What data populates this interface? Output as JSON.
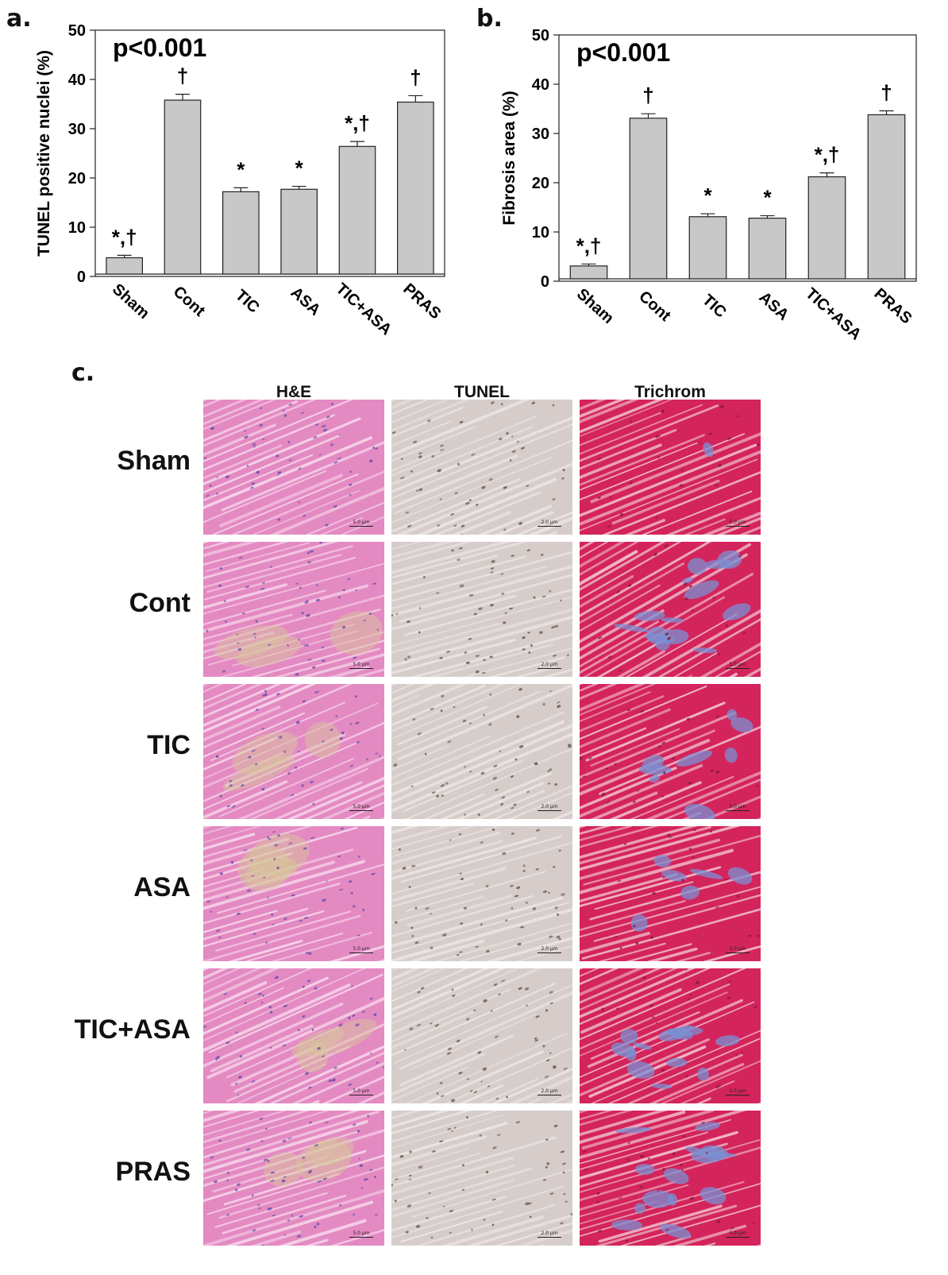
{
  "panel_labels": {
    "a": "a.",
    "b": "b.",
    "c": "c."
  },
  "chart_data": [
    {
      "type": "bar",
      "ylabel": "TUNEL positive nuclei (%)",
      "categories": [
        "Sham",
        "Cont",
        "TIC",
        "ASA",
        "TIC+ASA",
        "PRAS"
      ],
      "values": [
        3.8,
        35.8,
        17.2,
        17.7,
        26.4,
        35.4
      ],
      "errors": [
        0.5,
        1.2,
        0.8,
        0.6,
        1.0,
        1.3
      ],
      "annotations": [
        "*,†",
        "†",
        "*",
        "*",
        "*,†",
        "†"
      ],
      "pvalue": "p<0.001",
      "yticks": [
        0,
        10,
        20,
        30,
        40,
        50
      ],
      "ylim": [
        0,
        50
      ],
      "bar_color": "#c8c8c8"
    },
    {
      "type": "bar",
      "ylabel": "Fibrosis area (%)",
      "categories": [
        "Sham",
        "Cont",
        "TIC",
        "ASA",
        "TIC+ASA",
        "PRAS"
      ],
      "values": [
        3.1,
        33.1,
        13.1,
        12.8,
        21.2,
        33.8
      ],
      "errors": [
        0.4,
        0.9,
        0.6,
        0.5,
        0.8,
        0.8
      ],
      "annotations": [
        "*,†",
        "†",
        "*",
        "*",
        "*,†",
        "†"
      ],
      "pvalue": "p<0.001",
      "yticks": [
        0,
        10,
        20,
        30,
        40,
        50
      ],
      "ylim": [
        0,
        50
      ],
      "bar_color": "#c8c8c8"
    }
  ],
  "histology": {
    "columns": [
      "H&E",
      "TUNEL",
      "Trichrom"
    ],
    "rows": [
      "Sham",
      "Cont",
      "TIC",
      "ASA",
      "TIC+ASA",
      "PRAS"
    ],
    "scale_labels": [
      "5.0 µm",
      "2.0 µm",
      "5.0 µm"
    ],
    "stain_colors": {
      "he": "#e48ac2",
      "tunel": "#d6cdcb",
      "trichrom": "#d4245c",
      "fibrosis": "#7b8fd1"
    },
    "fibrosis_level": [
      0.05,
      0.8,
      0.45,
      0.35,
      0.7,
      0.75
    ]
  }
}
